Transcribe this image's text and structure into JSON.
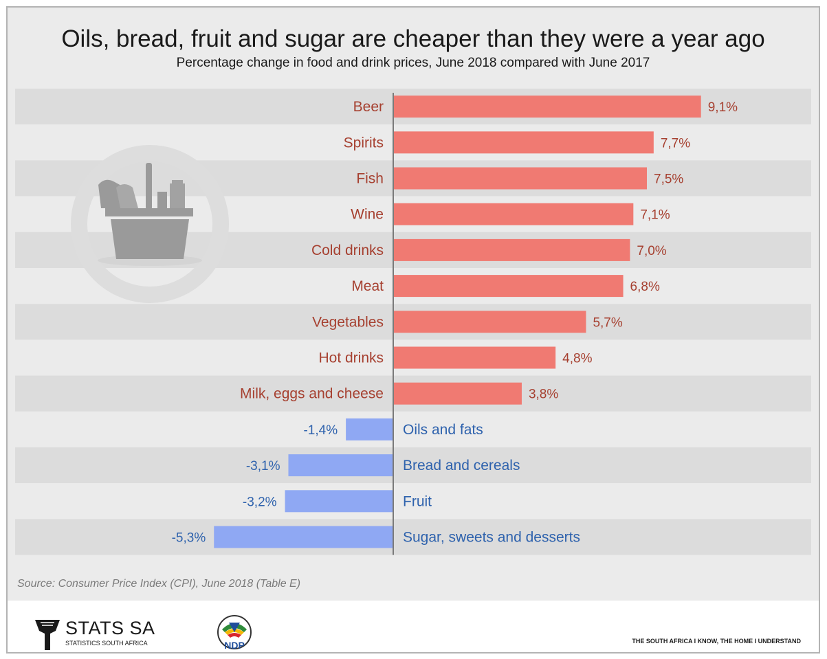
{
  "title": "Oils, bread, fruit and sugar are cheaper than they were a year ago",
  "subtitle": "Percentage change in food and drink prices, June 2018 compared with June 2017",
  "source": "Source: Consumer Price Index (CPI), June 2018 (Table E)",
  "footer": {
    "org_name": "STATS SA",
    "org_subtitle": "STATISTICS SOUTH AFRICA",
    "ndp_text": "NDP",
    "tagline": "THE SOUTH AFRICA I KNOW, THE HOME I UNDERSTAND"
  },
  "colors": {
    "positive": "#f07a72",
    "negative": "#8fa8f3",
    "positive_text": "#a64030",
    "negative_text": "#2e62ad",
    "band": "#dcdcdc",
    "background": "#ebebeb"
  },
  "icon": "shopping-basket-icon",
  "chart_data": {
    "type": "bar",
    "orientation": "horizontal",
    "categories": [
      "Beer",
      "Spirits",
      "Fish",
      "Wine",
      "Cold drinks",
      "Meat",
      "Vegetables",
      "Hot drinks",
      "Milk, eggs and cheese",
      "Oils and fats",
      "Bread and cereals",
      "Fruit",
      "Sugar, sweets and desserts"
    ],
    "values": [
      9.1,
      7.7,
      7.5,
      7.1,
      7.0,
      6.8,
      5.7,
      4.8,
      3.8,
      -1.4,
      -3.1,
      -3.2,
      -5.3
    ],
    "value_labels": [
      "9,1%",
      "7,7%",
      "7,5%",
      "7,1%",
      "7,0%",
      "6,8%",
      "5,7%",
      "4,8%",
      "3,8%",
      "-1,4%",
      "-3,1%",
      "-3,2%",
      "-5,3%"
    ],
    "title": "Oils, bread, fruit and sugar are cheaper than they were a year ago",
    "subtitle": "Percentage change in food and drink prices, June 2018 compared with June 2017",
    "xlabel": "",
    "ylabel": "",
    "legend": "none",
    "grid": false
  }
}
